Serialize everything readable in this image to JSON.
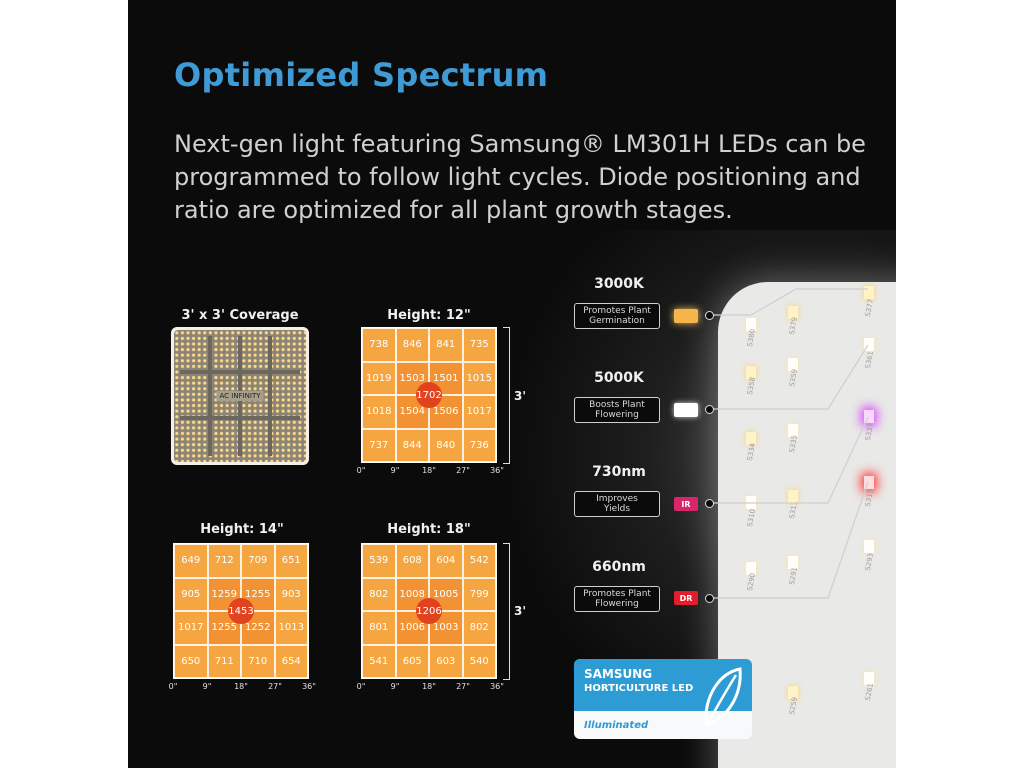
{
  "heading": "Optimized Spectrum",
  "description": "Next-gen light featuring Samsung® LM301H LEDs can be programmed to follow light cycles. Diode positioning and ratio are optimized for all plant growth stages.",
  "coverage": {
    "title": "3' x 3' Coverage",
    "logo_text": "AC INFINITY"
  },
  "maps": [
    {
      "title": "Height: 12\"",
      "cells": [
        "738",
        "846",
        "841",
        "735",
        "1019",
        "1503",
        "1501",
        "1015",
        "1018",
        "1504",
        "1506",
        "1017",
        "737",
        "844",
        "840",
        "736"
      ],
      "center": "1702",
      "ticks": [
        "0\"",
        "9\"",
        "18\"",
        "27\"",
        "36\""
      ],
      "size_label": "3'"
    },
    {
      "title": "Height: 14\"",
      "cells": [
        "649",
        "712",
        "709",
        "651",
        "905",
        "1259",
        "1255",
        "903",
        "1017",
        "1255",
        "1252",
        "1013",
        "650",
        "711",
        "710",
        "654"
      ],
      "center": "1453",
      "ticks": [
        "0\"",
        "9\"",
        "18\"",
        "27\"",
        "36\""
      ],
      "size_label": ""
    },
    {
      "title": "Height: 18\"",
      "cells": [
        "539",
        "608",
        "604",
        "542",
        "802",
        "1008",
        "1005",
        "799",
        "801",
        "1006",
        "1003",
        "802",
        "541",
        "605",
        "603",
        "540"
      ],
      "center": "1206",
      "ticks": [
        "0\"",
        "9\"",
        "18\"",
        "27\"",
        "36\""
      ],
      "size_label": "3'"
    }
  ],
  "spectrum": [
    {
      "title": "3000K",
      "desc_l1": "Promotes Plant",
      "desc_l2": "Germination",
      "chip": "",
      "color": "#f6b44a"
    },
    {
      "title": "5000K",
      "desc_l1": "Boosts Plant",
      "desc_l2": "Flowering",
      "chip": "",
      "color": "#ffffff"
    },
    {
      "title": "730nm",
      "desc_l1": "Improves",
      "desc_l2": "Yields",
      "chip": "IR",
      "color": "#d9256c"
    },
    {
      "title": "660nm",
      "desc_l1": "Promotes Plant",
      "desc_l2": "Flowering",
      "chip": "DR",
      "color": "#e41d2d"
    }
  ],
  "led_labels": [
    "S380",
    "S379",
    "S377",
    "S358",
    "S359",
    "S361",
    "S334",
    "S335",
    "S337",
    "S310",
    "S311",
    "S313",
    "S290",
    "S291",
    "S293",
    "S259",
    "S261"
  ],
  "badge": {
    "line1": "SAMSUNG",
    "line2": "HORTICULTURE LED",
    "line3": "Illuminated"
  },
  "colors": {
    "accent": "#3f9bd6",
    "map_outer": "#f5a640",
    "map_inner": "#f29232",
    "map_center": "#e2431f"
  }
}
